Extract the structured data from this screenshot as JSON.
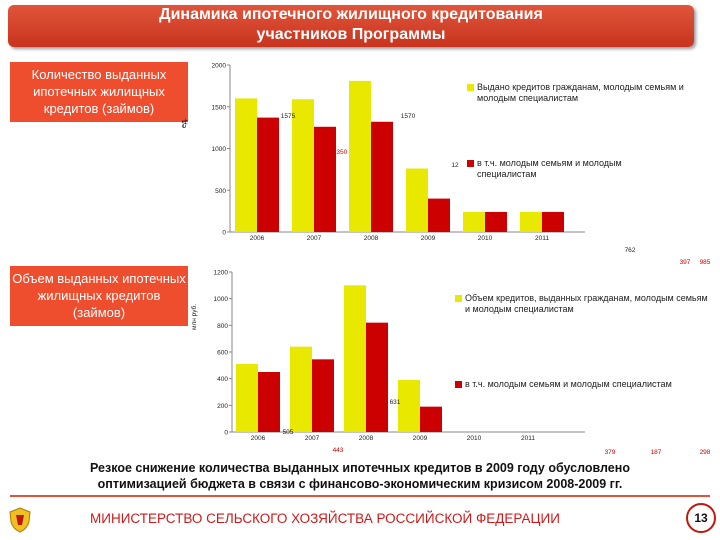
{
  "header": {
    "title_line1": "Динамика ипотечного жилищного кредитования",
    "title_line2": "участников Программы"
  },
  "left_labels": {
    "count": "Количество выданных ипотечных жилищных кредитов (займов)",
    "volume": "Объем выданных ипотечных жилищных кредитов (займов)"
  },
  "colors": {
    "series_all": "#e8e800",
    "series_young": "#cc0000",
    "accent": "#ee4d2e"
  },
  "chart_data": [
    {
      "type": "bar",
      "ylabel": "ед.",
      "ylim": [
        0,
        2000
      ],
      "yticks": [
        "0",
        "500",
        "1000",
        "1500",
        "2000"
      ],
      "categories": [
        "2006",
        "2007",
        "2008",
        "2009",
        "2010",
        "2011"
      ],
      "series": [
        {
          "name": "Выдано кредитов гражданам, молодым семьям и молодым специалистам",
          "values": [
            1600,
            1590,
            1810,
            760,
            240,
            240
          ]
        },
        {
          "name": "в т.ч. молодым семьям и молодым специалистам",
          "values": [
            1370,
            1260,
            1320,
            400,
            240,
            240
          ]
        }
      ],
      "annotations": [
        "1575",
        "1570",
        "1350",
        "12",
        "762",
        "397",
        "985"
      ]
    },
    {
      "type": "bar",
      "ylabel": "млн руб.",
      "ylim": [
        0,
        1200
      ],
      "yticks": [
        "0",
        "200",
        "400",
        "600",
        "800",
        "1000",
        "1200"
      ],
      "categories": [
        "2006",
        "2007",
        "2008",
        "2009",
        "2010",
        "2011"
      ],
      "series": [
        {
          "name": "Объем кредитов, выданных гражданам, молодым семьям и молодым специалистам",
          "values": [
            510,
            640,
            1100,
            390,
            0,
            0
          ]
        },
        {
          "name": "в т.ч. молодым семьям и молодым специалистам",
          "values": [
            450,
            545,
            820,
            190,
            0,
            0
          ]
        }
      ],
      "annotations": [
        "631",
        "505",
        "443",
        "379",
        "187",
        "298"
      ]
    }
  ],
  "conclusion": {
    "line1": "Резкое снижение количества выданных ипотечных кредитов в 2009 году обусловлено",
    "line2": "оптимизацией бюджета в связи с финансово-экономическим кризисом 2008-2009 гг."
  },
  "footer": {
    "ministry": "МИНИСТЕРСТВО СЕЛЬСКОГО ХОЗЯЙСТВА РОССИЙСКОЙ ФЕДЕРАЦИИ",
    "page": "13",
    "emblem_icon": "coat-of-arms-icon"
  }
}
